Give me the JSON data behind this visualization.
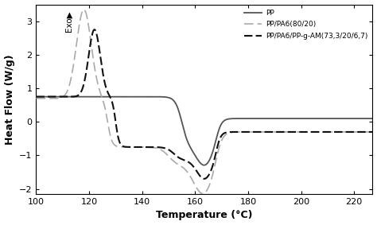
{
  "title": "",
  "xlabel": "Temperature (°C)",
  "ylabel": "Heat Flow (W/g)",
  "exo_label": "Exo▶",
  "xlim": [
    100,
    227
  ],
  "ylim": [
    -2.15,
    3.5
  ],
  "yticks": [
    -2,
    -1,
    0,
    1,
    2,
    3
  ],
  "xticks": [
    100,
    120,
    140,
    160,
    180,
    200,
    220
  ],
  "legend_entries": [
    "PP",
    "PP/PA6(80/20)",
    "PP/PA6/PP-g-AM(73,3/20/6,7)"
  ],
  "background_color": "#ffffff",
  "PP_color": "#555555",
  "PPPA6_color": "#aaaaaa",
  "PPgMA_color": "#111111",
  "PP_lw": 1.3,
  "PPPA6_lw": 1.2,
  "PPgMA_lw": 1.5
}
